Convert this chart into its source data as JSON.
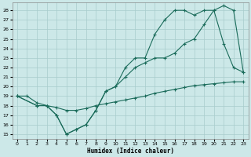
{
  "xlabel": "Humidex (Indice chaleur)",
  "bg_color": "#cce8e8",
  "grid_color": "#a8cccc",
  "line_color": "#1a6b5a",
  "xlim": [
    -0.5,
    23.5
  ],
  "ylim": [
    14.5,
    28.8
  ],
  "xticks": [
    0,
    1,
    2,
    3,
    4,
    5,
    6,
    7,
    8,
    9,
    10,
    11,
    12,
    13,
    14,
    15,
    16,
    17,
    18,
    19,
    20,
    21,
    22,
    23
  ],
  "yticks": [
    15,
    16,
    17,
    18,
    19,
    20,
    21,
    22,
    23,
    24,
    25,
    26,
    27,
    28
  ],
  "line1_x": [
    0,
    1,
    2,
    3,
    4,
    5,
    6,
    7,
    8,
    9,
    10,
    11,
    12,
    13,
    14,
    15,
    16,
    17,
    18,
    19,
    20,
    21,
    22,
    23
  ],
  "line1_y": [
    19.0,
    19.0,
    18.3,
    18.0,
    17.8,
    17.5,
    17.5,
    17.7,
    18.0,
    18.2,
    18.4,
    18.6,
    18.8,
    19.0,
    19.3,
    19.5,
    19.7,
    19.9,
    20.1,
    20.2,
    20.3,
    20.4,
    20.5,
    20.5
  ],
  "line2_x": [
    0,
    2,
    3,
    4,
    5,
    6,
    7,
    8,
    9,
    10,
    11,
    12,
    13,
    14,
    15,
    16,
    17,
    18,
    19,
    20,
    21,
    22,
    23
  ],
  "line2_y": [
    19.0,
    18.0,
    18.0,
    17.0,
    15.0,
    15.5,
    16.0,
    17.5,
    19.5,
    20.0,
    21.0,
    22.0,
    22.5,
    23.0,
    23.0,
    23.5,
    24.5,
    25.0,
    26.5,
    28.0,
    28.5,
    28.0,
    21.5
  ],
  "line3_x": [
    0,
    2,
    3,
    4,
    5,
    6,
    7,
    8,
    9,
    10,
    11,
    12,
    13,
    14,
    15,
    16,
    17,
    18,
    19,
    20,
    21,
    22,
    23
  ],
  "line3_y": [
    19.0,
    18.0,
    18.0,
    17.0,
    15.0,
    15.5,
    16.0,
    17.5,
    19.5,
    20.0,
    22.0,
    23.0,
    23.0,
    25.5,
    27.0,
    28.0,
    28.0,
    27.5,
    28.0,
    28.0,
    24.5,
    22.0,
    21.5
  ]
}
